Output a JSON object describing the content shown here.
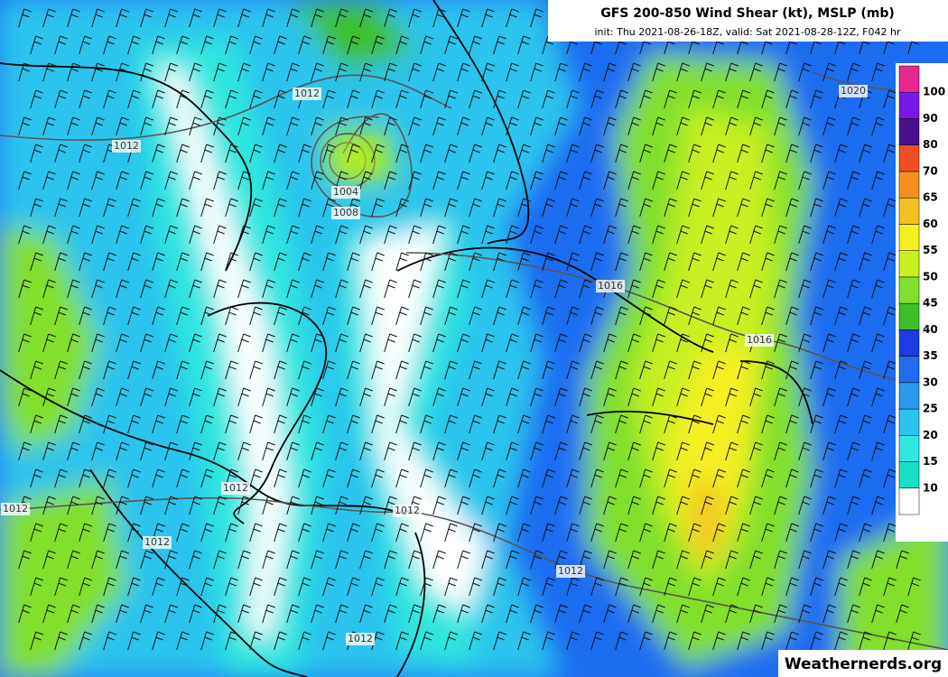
{
  "map": {
    "title": "GFS 200-850 Wind Shear (kt), MSLP (mb)",
    "subtitle": "init: Thu 2021-08-26-18Z, valid: Sat 2021-08-28-12Z, F042 hr",
    "colorbar": {
      "levels": [
        10,
        15,
        20,
        25,
        30,
        35,
        40,
        45,
        50,
        55,
        60,
        65,
        70,
        80,
        90,
        100
      ],
      "colors": [
        "#ffffff",
        "#19e0c4",
        "#2fe6e0",
        "#2cc4ee",
        "#2a9af0",
        "#1f6cf0",
        "#1a3ce0",
        "#3cc02a",
        "#80e02c",
        "#c8f020",
        "#f4f020",
        "#f4c020",
        "#f49020",
        "#f05020",
        "#4a1090",
        "#7a18e8",
        "#e82890"
      ]
    },
    "isobar_labels": [
      "1012",
      "1012",
      "1004",
      "1008",
      "1020",
      "1016",
      "1016",
      "1012",
      "1012",
      "1012",
      "1012",
      "1012",
      "1012"
    ],
    "watermark": "Weathernerds.org"
  }
}
